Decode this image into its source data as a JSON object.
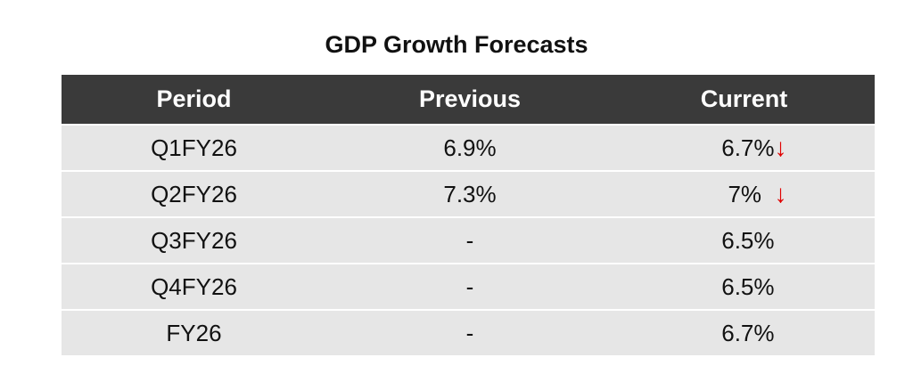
{
  "title": "GDP Growth Forecasts",
  "headers": {
    "period": "Period",
    "previous": "Previous",
    "current": "Current"
  },
  "rows": [
    {
      "period": "Q1FY26",
      "previous": "6.9%",
      "current": "6.7%",
      "arrow": "↓"
    },
    {
      "period": "Q2FY26",
      "previous": "7.3%",
      "current": "7%  ",
      "arrow": "↓"
    },
    {
      "period": "Q3FY26",
      "previous": "-",
      "current": "6.5%",
      "arrow": ""
    },
    {
      "period": "Q4FY26",
      "previous": "-",
      "current": "6.5%",
      "arrow": ""
    },
    {
      "period": "FY26",
      "previous": "-",
      "current": "6.7%",
      "arrow": ""
    }
  ],
  "colors": {
    "header_bg": "#3a3a3a",
    "row_bg": "#e6e6e6",
    "down_arrow": "#e00000"
  }
}
